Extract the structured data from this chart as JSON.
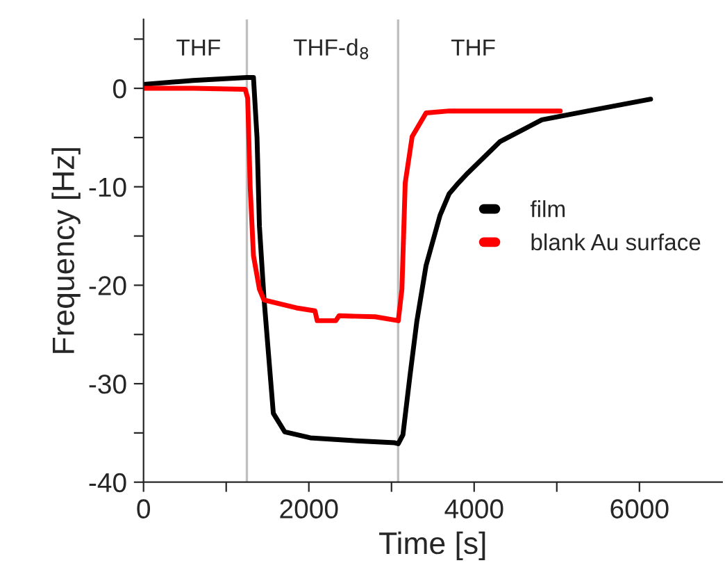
{
  "chart_data": {
    "type": "line",
    "xlabel": "Time [s]",
    "ylabel": "Frequency [Hz]",
    "xlim": [
      0,
      7000
    ],
    "ylim": [
      -40,
      7
    ],
    "xticks": [
      0,
      {
        "value": 1000,
        "label": null
      },
      2000,
      {
        "value": 3000,
        "label": null
      },
      4000,
      {
        "value": 5000,
        "label": null
      },
      6000
    ],
    "yticks": [
      -40,
      {
        "value": -35,
        "label": null
      },
      -30,
      {
        "value": -25,
        "label": null
      },
      -20,
      {
        "value": -15,
        "label": null
      },
      -10,
      {
        "value": -5,
        "label": null
      },
      0,
      {
        "value": 5,
        "label": null
      }
    ],
    "grid": false,
    "legend": "right",
    "series": [
      {
        "name": "film",
        "color": "#000000",
        "x": [
          0,
          600,
          1250,
          1330,
          1373,
          1402,
          1457,
          1570,
          1709,
          2017,
          2578,
          3040,
          3082,
          3138,
          3222,
          3306,
          3418,
          3587,
          3698,
          3811,
          3923,
          4315,
          4819,
          5378,
          6135
        ],
        "values": [
          0.4,
          0.8,
          1.1,
          1.1,
          -5,
          -14,
          -21.3,
          -33,
          -34.9,
          -35.5,
          -35.8,
          -36,
          -36.1,
          -35.2,
          -29.3,
          -23.7,
          -18,
          -12.9,
          -10.7,
          -9.6,
          -8.6,
          -5.4,
          -3.2,
          -2.3,
          -1.1
        ]
      },
      {
        "name": "blank Au surface",
        "color": "#ff0000",
        "x": [
          0,
          600,
          1230,
          1260,
          1290,
          1330,
          1402,
          1457,
          1849,
          2074,
          2101,
          2326,
          2365,
          2802,
          3082,
          3126,
          3166,
          3250,
          3418,
          3698,
          5042
        ],
        "values": [
          0,
          0,
          -0.1,
          -1,
          -10,
          -17,
          -20.4,
          -21.5,
          -22.3,
          -22.6,
          -23.6,
          -23.6,
          -23.1,
          -23.2,
          -23.6,
          -20.4,
          -9.6,
          -4.9,
          -2.5,
          -2.3,
          -2.3
        ]
      }
    ],
    "ref_lines": [
      {
        "axis": "x",
        "value": 1250,
        "color": "#bfbfbf"
      },
      {
        "axis": "x",
        "value": 3080,
        "color": "#bfbfbf"
      }
    ],
    "annotations": [
      "THF",
      "THF-d$_{8}$",
      "THF"
    ]
  }
}
